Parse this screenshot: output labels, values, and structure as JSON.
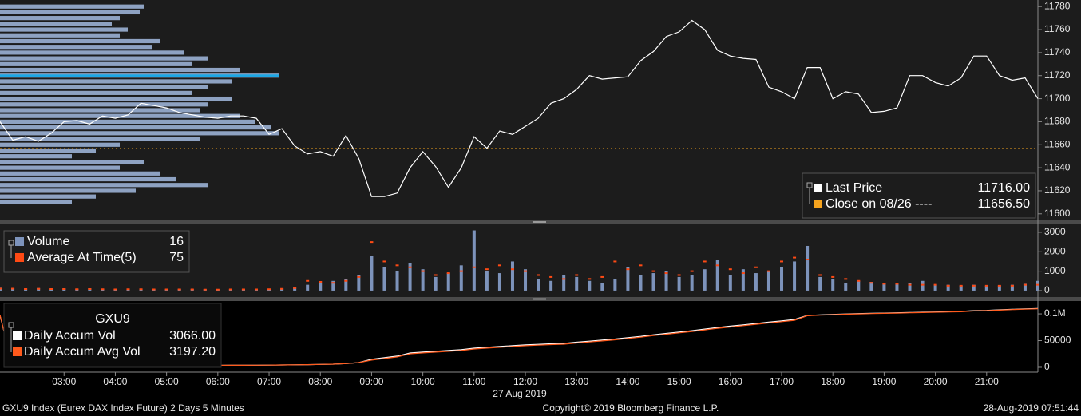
{
  "chart_data": [
    {
      "type": "line",
      "x": [
        1.75,
        2,
        2.25,
        2.5,
        2.75,
        3,
        3.25,
        3.5,
        3.75,
        4,
        4.25,
        4.5,
        4.75,
        5,
        5.25,
        5.5,
        5.75,
        6,
        6.25,
        6.5,
        6.75,
        7,
        7.25,
        7.5,
        7.75,
        8,
        8.25,
        8.5,
        8.75,
        9,
        9.25,
        9.5,
        9.75,
        10,
        10.25,
        10.5,
        10.75,
        11,
        11.25,
        11.5,
        11.75,
        12,
        12.25,
        12.5,
        12.75,
        13,
        13.25,
        13.5,
        13.75,
        14,
        14.25,
        14.5,
        14.75,
        15,
        15.25,
        15.5,
        15.75,
        16,
        16.25,
        16.5,
        16.75,
        17,
        17.25,
        17.5,
        17.75,
        18,
        18.25,
        18.5,
        18.75,
        19,
        19.25,
        19.5,
        19.75,
        20,
        20.25,
        20.5,
        20.75,
        21,
        21.25,
        21.5,
        21.75,
        22
      ],
      "series": [
        {
          "name": "Last Price",
          "color": "#ffffff",
          "legend_value": "11716.00",
          "values": [
            11680,
            11664,
            11667,
            11663,
            11670,
            11680,
            11681,
            11678,
            11685,
            11683,
            11686,
            11696,
            11694,
            11692,
            11688,
            11686,
            11684,
            11683,
            11685,
            11685,
            11683,
            11669,
            11674,
            11659,
            11652,
            11654,
            11650,
            11668,
            11648,
            11615,
            11615,
            11618,
            11640,
            11654,
            11641,
            11623,
            11640,
            11667,
            11657,
            11672,
            11669,
            11676,
            11683,
            11696,
            11700,
            11708,
            11720,
            11717,
            11718,
            11719,
            11733,
            11741,
            11754,
            11758,
            11768,
            11760,
            11742,
            11737,
            11735,
            11734,
            11710,
            11706,
            11700,
            11727,
            11727,
            11700,
            11706,
            11704,
            11688,
            11689,
            11692,
            11720,
            11720,
            11714,
            11711,
            11718,
            11737,
            11737,
            11720,
            11716,
            11718,
            11700
          ]
        }
      ],
      "reference": {
        "name": "Close on 08/26 ----",
        "value": 11656.5,
        "value_label": "11656.50",
        "color": "#f5a31e"
      },
      "volume_profile": {
        "color": "#8ea2c2",
        "poc": 11720,
        "poc_color": "#1ea7e4",
        "xlim": [
          0,
          1300
        ],
        "prices": [
          11780,
          11775,
          11770,
          11765,
          11760,
          11755,
          11750,
          11745,
          11740,
          11735,
          11730,
          11725,
          11720,
          11715,
          11710,
          11705,
          11700,
          11695,
          11690,
          11685,
          11680,
          11675,
          11670,
          11665,
          11660,
          11655,
          11650,
          11645,
          11640,
          11635,
          11630,
          11625,
          11620,
          11615,
          11610
        ],
        "values": [
          180,
          175,
          150,
          140,
          160,
          150,
          200,
          190,
          230,
          260,
          240,
          300,
          350,
          290,
          260,
          240,
          290,
          260,
          250,
          300,
          320,
          340,
          350,
          250,
          150,
          120,
          90,
          180,
          150,
          200,
          220,
          260,
          170,
          120,
          90
        ]
      },
      "xlim": [
        1.75,
        22
      ],
      "ylim": [
        11595,
        11785
      ],
      "yticks": [
        11600,
        11620,
        11640,
        11660,
        11680,
        11700,
        11720,
        11740,
        11760,
        11780
      ]
    },
    {
      "type": "bar",
      "x": [
        1.75,
        2,
        2.25,
        2.5,
        2.75,
        3,
        3.25,
        3.5,
        3.75,
        4,
        4.25,
        4.5,
        4.75,
        5,
        5.25,
        5.5,
        5.75,
        6,
        6.25,
        6.5,
        6.75,
        7,
        7.25,
        7.5,
        7.75,
        8,
        8.25,
        8.5,
        8.75,
        9,
        9.25,
        9.5,
        9.75,
        10,
        10.25,
        10.5,
        10.75,
        11,
        11.25,
        11.5,
        11.75,
        12,
        12.25,
        12.5,
        12.75,
        13,
        13.25,
        13.5,
        13.75,
        14,
        14.25,
        14.5,
        14.75,
        15,
        15.25,
        15.5,
        15.75,
        16,
        16.25,
        16.5,
        16.75,
        17,
        17.25,
        17.5,
        17.75,
        18,
        18.25,
        18.5,
        18.75,
        19,
        19.25,
        19.5,
        19.75,
        20,
        20.25,
        20.5,
        20.75,
        21,
        21.25,
        21.5,
        21.75,
        22
      ],
      "series": [
        {
          "name": "Volume",
          "color": "#7d93bb",
          "legend_value": "16",
          "values": [
            150,
            120,
            100,
            130,
            100,
            110,
            90,
            120,
            100,
            80,
            90,
            100,
            80,
            70,
            90,
            80,
            70,
            60,
            80,
            70,
            60,
            80,
            100,
            150,
            300,
            400,
            500,
            600,
            800,
            1800,
            1200,
            1000,
            1400,
            1100,
            700,
            900,
            1300,
            3100,
            1000,
            900,
            1500,
            1100,
            600,
            500,
            800,
            700,
            500,
            400,
            600,
            1200,
            800,
            900,
            1000,
            700,
            800,
            1100,
            1600,
            800,
            1100,
            900,
            1000,
            1200,
            1500,
            2300,
            700,
            600,
            400,
            500,
            450,
            400,
            350,
            400,
            500,
            300,
            300,
            250,
            300,
            250,
            250,
            300,
            350,
            500
          ]
        },
        {
          "name": "Average At Time(5)",
          "color": "#ff4a14",
          "legend_value": "75",
          "values": [
            100,
            100,
            80,
            90,
            80,
            80,
            70,
            80,
            70,
            60,
            70,
            70,
            60,
            60,
            60,
            60,
            50,
            50,
            60,
            60,
            60,
            70,
            90,
            130,
            500,
            450,
            400,
            500,
            700,
            2500,
            1500,
            1300,
            1200,
            1000,
            800,
            900,
            1000,
            1200,
            1100,
            1300,
            1100,
            1000,
            800,
            700,
            600,
            800,
            600,
            700,
            1500,
            1100,
            1300,
            1000,
            900,
            800,
            1000,
            1500,
            1300,
            1100,
            900,
            1200,
            1000,
            1500,
            1700,
            1600,
            800,
            700,
            600,
            500,
            400,
            350,
            350,
            300,
            300,
            300,
            250,
            250,
            250,
            250,
            250,
            250,
            300,
            300
          ]
        }
      ],
      "xlim": [
        1.75,
        22
      ],
      "ylim": [
        -300,
        3450
      ],
      "yticks": [
        0,
        1000,
        2000,
        3000
      ]
    },
    {
      "type": "line",
      "title": "GXU9",
      "x": [
        1.75,
        2,
        2.25,
        2.5,
        2.75,
        3,
        3.25,
        3.5,
        3.75,
        4,
        4.25,
        4.5,
        4.75,
        5,
        5.25,
        5.5,
        5.75,
        6,
        6.25,
        6.5,
        6.75,
        7,
        7.25,
        7.5,
        7.75,
        8,
        8.25,
        8.5,
        8.75,
        9,
        9.25,
        9.5,
        9.75,
        10,
        10.25,
        10.5,
        10.75,
        11,
        11.25,
        11.5,
        11.75,
        12,
        12.25,
        12.5,
        12.75,
        13,
        13.25,
        13.5,
        13.75,
        14,
        14.25,
        14.5,
        14.75,
        15,
        15.25,
        15.5,
        15.75,
        16,
        16.25,
        16.5,
        16.75,
        17,
        17.25,
        17.5,
        17.75,
        18,
        18.25,
        18.5,
        18.75,
        19,
        19.25,
        19.5,
        19.75,
        20,
        20.25,
        20.5,
        20.75,
        21,
        21.25,
        21.5,
        21.75,
        22
      ],
      "series": [
        {
          "name": "Daily Accum Vol",
          "color": "#ffffff",
          "legend_value": "3066.00",
          "values": [
            97000,
            2000,
            2200,
            2300,
            2400,
            2500,
            2600,
            2700,
            2800,
            2900,
            3000,
            3100,
            3200,
            3300,
            3400,
            3500,
            3600,
            3700,
            3800,
            3900,
            4000,
            4200,
            4400,
            4800,
            5100,
            5500,
            6000,
            7000,
            9000,
            15000,
            18000,
            21000,
            26900,
            28500,
            30000,
            31500,
            33000,
            35800,
            37500,
            39000,
            40500,
            42000,
            43000,
            44000,
            44800,
            47000,
            49000,
            51000,
            53000,
            55500,
            58000,
            61000,
            63500,
            66000,
            68500,
            71500,
            74600,
            77000,
            79500,
            82000,
            84500,
            87000,
            89500,
            97000,
            98000,
            99000,
            99800,
            100500,
            101000,
            101500,
            102000,
            102500,
            103000,
            103500,
            104000,
            104500,
            106000,
            106500,
            107500,
            108500,
            109200,
            110000
          ]
        },
        {
          "name": "Daily Accum Avg Vol",
          "color": "#ff5a1c",
          "legend_value": "3197.20",
          "values": [
            98000,
            2000,
            2200,
            2300,
            2400,
            2500,
            2600,
            2700,
            2800,
            2900,
            3000,
            3100,
            3200,
            3300,
            3400,
            3500,
            3600,
            3700,
            3800,
            3900,
            4000,
            4200,
            4400,
            4800,
            5100,
            5500,
            6000,
            7000,
            9000,
            13500,
            16500,
            19500,
            25400,
            27000,
            28500,
            30000,
            31500,
            34300,
            36000,
            37500,
            39000,
            40500,
            41500,
            42500,
            43300,
            45500,
            47500,
            49500,
            51500,
            54000,
            56500,
            59500,
            62000,
            64500,
            67000,
            70000,
            73100,
            75500,
            78000,
            80500,
            83000,
            85500,
            88000,
            96500,
            97500,
            98500,
            99300,
            100000,
            100500,
            101000,
            101500,
            102000,
            102500,
            103000,
            103500,
            104000,
            105500,
            106000,
            107000,
            108000,
            108700,
            109500
          ]
        }
      ],
      "xlim": [
        1.75,
        22
      ],
      "ylim": [
        -7500,
        121000
      ],
      "yticks": [
        0,
        50000,
        {
          "value": 100000,
          "label": "0.1M"
        }
      ],
      "xticks": [
        {
          "value": 3,
          "label": "03:00"
        },
        {
          "value": 4,
          "label": "04:00"
        },
        {
          "value": 5,
          "label": "05:00"
        },
        {
          "value": 6,
          "label": "06:00"
        },
        {
          "value": 7,
          "label": "07:00"
        },
        {
          "value": 8,
          "label": "08:00"
        },
        {
          "value": 9,
          "label": "09:00"
        },
        {
          "value": 10,
          "label": "10:00"
        },
        {
          "value": 11,
          "label": "11:00"
        },
        {
          "value": 12,
          "label": "12:00"
        },
        {
          "value": 13,
          "label": "13:00"
        },
        {
          "value": 14,
          "label": "14:00"
        },
        {
          "value": 15,
          "label": "15:00"
        },
        {
          "value": 16,
          "label": "16:00"
        },
        {
          "value": 17,
          "label": "17:00"
        },
        {
          "value": 18,
          "label": "18:00"
        },
        {
          "value": 19,
          "label": "19:00"
        },
        {
          "value": 20,
          "label": "20:00"
        },
        {
          "value": 21,
          "label": "21:00"
        }
      ],
      "date_label": "27 Aug 2019"
    }
  ],
  "footer": {
    "left": "GXU9 Index (Eurex DAX Index Future) 2 Days 5 Minutes",
    "center": "Copyright© 2019 Bloomberg Finance L.P.",
    "right": "28-Aug-2019 07:51:44"
  }
}
